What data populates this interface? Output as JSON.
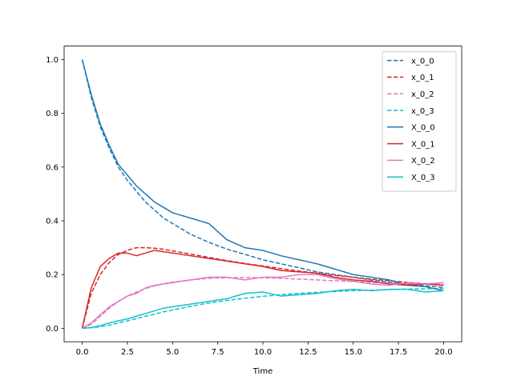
{
  "chart_data": {
    "type": "line",
    "title": "",
    "xlabel": "Time",
    "ylabel": "",
    "xlim": [
      -1.0,
      21.0
    ],
    "ylim": [
      -0.05,
      1.05
    ],
    "xticks": [
      0.0,
      2.5,
      5.0,
      7.5,
      10.0,
      12.5,
      15.0,
      17.5,
      20.0
    ],
    "xtick_labels": [
      "0.0",
      "2.5",
      "5.0",
      "7.5",
      "10.0",
      "12.5",
      "15.0",
      "17.5",
      "20.0"
    ],
    "yticks": [
      0.0,
      0.2,
      0.4,
      0.6,
      0.8,
      1.0
    ],
    "ytick_labels": [
      "0.0",
      "0.2",
      "0.4",
      "0.6",
      "0.8",
      "1.0"
    ],
    "grid": false,
    "legend_position": "top-right",
    "x": [
      0,
      0.5,
      1,
      1.5,
      2,
      2.5,
      3,
      3.5,
      4,
      4.5,
      5,
      6,
      7,
      8,
      9,
      10,
      11,
      12,
      13,
      14,
      15,
      16,
      17,
      18,
      19,
      20
    ],
    "series": [
      {
        "name": "x_0_0",
        "style": "dashed",
        "color": "#1f77b4",
        "values": [
          1.0,
          0.86,
          0.75,
          0.67,
          0.6,
          0.55,
          0.51,
          0.47,
          0.44,
          0.41,
          0.39,
          0.35,
          0.32,
          0.295,
          0.275,
          0.255,
          0.24,
          0.225,
          0.21,
          0.2,
          0.19,
          0.18,
          0.172,
          0.165,
          0.158,
          0.152
        ]
      },
      {
        "name": "x_0_1",
        "style": "dashed",
        "color": "#d62728",
        "values": [
          0.0,
          0.13,
          0.2,
          0.245,
          0.275,
          0.29,
          0.3,
          0.3,
          0.298,
          0.294,
          0.288,
          0.276,
          0.264,
          0.252,
          0.241,
          0.232,
          0.222,
          0.213,
          0.205,
          0.197,
          0.19,
          0.183,
          0.177,
          0.171,
          0.166,
          0.162
        ]
      },
      {
        "name": "x_0_2",
        "style": "dashed",
        "color": "#e377c2",
        "values": [
          0.0,
          0.015,
          0.045,
          0.075,
          0.1,
          0.12,
          0.135,
          0.148,
          0.158,
          0.166,
          0.172,
          0.18,
          0.186,
          0.188,
          0.189,
          0.188,
          0.186,
          0.183,
          0.18,
          0.177,
          0.174,
          0.171,
          0.168,
          0.166,
          0.164,
          0.162
        ]
      },
      {
        "name": "x_0_3",
        "style": "dashed",
        "color": "#17becf",
        "values": [
          0.0,
          0.002,
          0.006,
          0.012,
          0.02,
          0.028,
          0.036,
          0.045,
          0.053,
          0.061,
          0.068,
          0.082,
          0.094,
          0.104,
          0.112,
          0.119,
          0.125,
          0.13,
          0.134,
          0.137,
          0.14,
          0.142,
          0.144,
          0.146,
          0.147,
          0.148
        ]
      },
      {
        "name": "X_0_0",
        "style": "solid",
        "color": "#1f77b4",
        "values": [
          1.0,
          0.87,
          0.76,
          0.68,
          0.61,
          0.57,
          0.53,
          0.5,
          0.47,
          0.45,
          0.43,
          0.41,
          0.39,
          0.33,
          0.3,
          0.29,
          0.27,
          0.255,
          0.24,
          0.22,
          0.2,
          0.19,
          0.18,
          0.16,
          0.155,
          0.14
        ]
      },
      {
        "name": "X_0_1",
        "style": "solid",
        "color": "#d62728",
        "values": [
          0.0,
          0.15,
          0.23,
          0.26,
          0.28,
          0.28,
          0.27,
          0.28,
          0.29,
          0.285,
          0.28,
          0.27,
          0.26,
          0.25,
          0.24,
          0.23,
          0.215,
          0.21,
          0.205,
          0.19,
          0.18,
          0.175,
          0.165,
          0.16,
          0.165,
          0.16
        ]
      },
      {
        "name": "X_0_2",
        "style": "solid",
        "color": "#e377c2",
        "values": [
          0.0,
          0.02,
          0.05,
          0.08,
          0.1,
          0.12,
          0.13,
          0.15,
          0.16,
          0.165,
          0.17,
          0.18,
          0.19,
          0.19,
          0.18,
          0.19,
          0.19,
          0.2,
          0.2,
          0.185,
          0.175,
          0.165,
          0.16,
          0.17,
          0.165,
          0.17
        ]
      },
      {
        "name": "X_0_3",
        "style": "solid",
        "color": "#17becf",
        "values": [
          0.0,
          0.003,
          0.01,
          0.02,
          0.028,
          0.035,
          0.045,
          0.055,
          0.065,
          0.075,
          0.08,
          0.09,
          0.1,
          0.11,
          0.13,
          0.135,
          0.12,
          0.125,
          0.13,
          0.14,
          0.145,
          0.14,
          0.145,
          0.145,
          0.135,
          0.14
        ]
      }
    ]
  }
}
